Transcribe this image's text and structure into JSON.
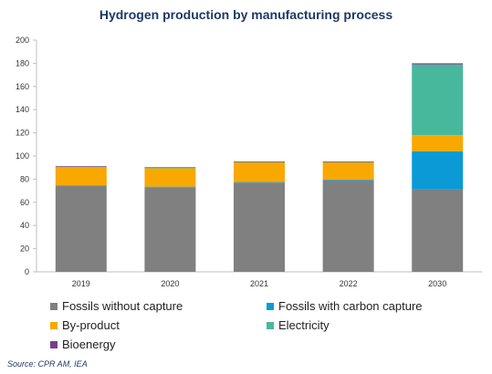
{
  "chart_data": {
    "type": "bar",
    "stacked": true,
    "title": "Hydrogen production by manufacturing process",
    "categories": [
      "2019",
      "2020",
      "2021",
      "2022",
      "2030"
    ],
    "series": [
      {
        "name": "Fossils without capture",
        "color": "#808080",
        "values": [
          74,
          73,
          77,
          79,
          71
        ]
      },
      {
        "name": "Fossils with carbon capture",
        "color": "#0a9bd6",
        "values": [
          0.5,
          0.5,
          0.5,
          0.5,
          33
        ]
      },
      {
        "name": "By-product",
        "color": "#f9a800",
        "values": [
          16,
          16,
          17,
          15,
          14
        ]
      },
      {
        "name": "Electricity",
        "color": "#48b89c",
        "values": [
          0.3,
          0.3,
          0.3,
          0.3,
          61
        ]
      },
      {
        "name": "Bioenergy",
        "color": "#7a3d8c",
        "values": [
          0.5,
          0.5,
          0.5,
          0.5,
          1
        ]
      }
    ],
    "ylim": [
      0,
      200
    ],
    "yticks": [
      0,
      20,
      40,
      60,
      80,
      100,
      120,
      140,
      160,
      180,
      200
    ],
    "grid": false,
    "legend_position": "bottom"
  },
  "source": "Source: CPR AM, IEA"
}
